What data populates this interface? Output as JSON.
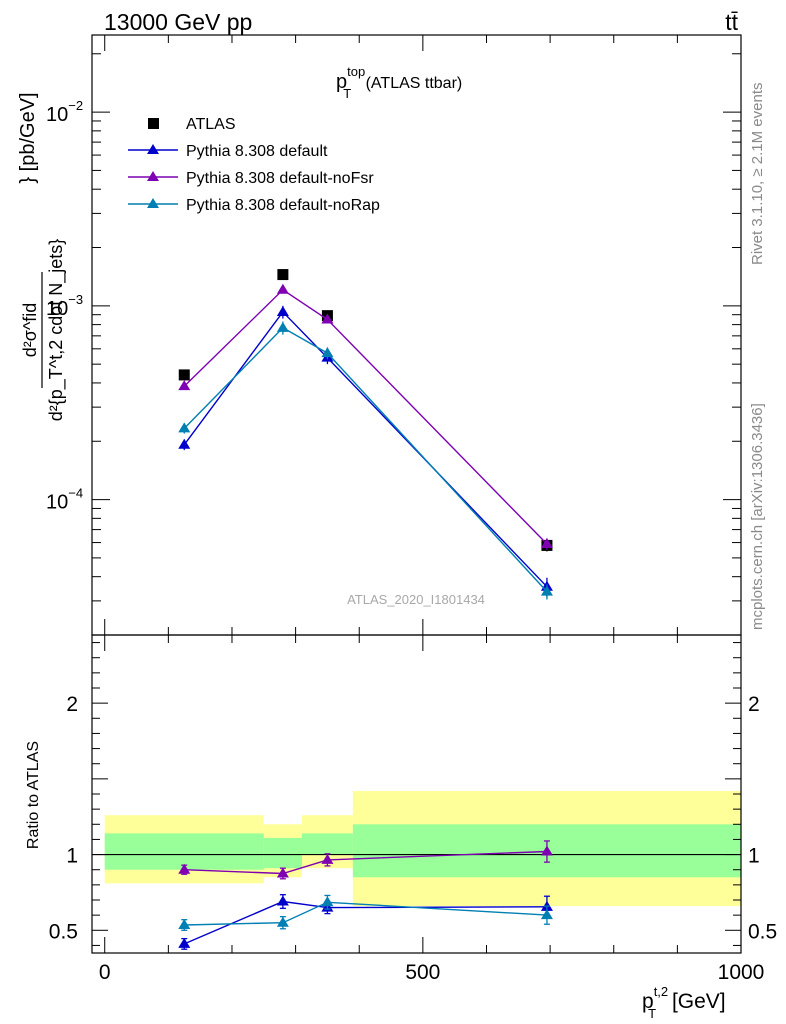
{
  "header": {
    "left": "13000 GeV pp",
    "right": "tt̄"
  },
  "side_labels": {
    "rivet": "Rivet 3.1.10, ≥ 2.1M events",
    "mcplots": "mcplots.cern.ch [arXiv:1306.3436]"
  },
  "chart_data": [
    {
      "type": "scatter",
      "panel": "main",
      "title": "p_T^top (ATLAS ttbar)",
      "title_parts": {
        "base": "p",
        "sub": "T",
        "sup": "top",
        "rest": " (ATLAS ttbar)"
      },
      "ylabel_parts": {
        "frac_numerator": "d²σ^fid",
        "frac_denominator": "d²{p_T^t,2 cdot N_jets}",
        "unit": "} [pb/GeV]"
      },
      "watermark": "ATLAS_2020_I1801434",
      "yscale": "log",
      "xlim": [
        -20,
        1000
      ],
      "ylim": [
        2e-05,
        0.025
      ],
      "yticks_major": [
        {
          "value": 0.0001,
          "label_base": "10",
          "label_exp": "−4"
        },
        {
          "value": 0.001,
          "label_base": "10",
          "label_exp": "−3"
        },
        {
          "value": 0.01,
          "label_base": "10",
          "label_exp": "−2"
        }
      ],
      "legend_position": "top-left",
      "series": [
        {
          "name": "ATLAS",
          "color": "#000000",
          "marker": "square",
          "line": false,
          "x": [
            125,
            280,
            350,
            695
          ],
          "y": [
            0.00044,
            0.00145,
            0.00089,
            5.8e-05
          ],
          "err": [
            2e-05,
            5e-05,
            3e-05,
            4e-06
          ]
        },
        {
          "name": "Pythia 8.308 default",
          "color": "#0000cc",
          "marker": "triangle",
          "line": true,
          "x": [
            125,
            280,
            350,
            695
          ],
          "y": [
            0.000192,
            0.00093,
            0.00054,
            3.55e-05
          ],
          "err": [
            1.2e-05,
            7e-05,
            4e-05,
            4e-06
          ]
        },
        {
          "name": "Pythia 8.308 default-noFsr",
          "color": "#7f00b3",
          "marker": "triangle",
          "line": true,
          "x": [
            125,
            280,
            350,
            695
          ],
          "y": [
            0.000385,
            0.00121,
            0.00085,
            5.9e-05
          ],
          "err": [
            1e-05,
            5e-05,
            3e-05,
            4e-06
          ]
        },
        {
          "name": "Pythia 8.308 default-noRap",
          "color": "#007fb3",
          "marker": "triangle",
          "line": true,
          "x": [
            125,
            280,
            350,
            695
          ],
          "y": [
            0.000233,
            0.00077,
            0.00057,
            3.35e-05
          ],
          "err": [
            1.4e-05,
            6e-05,
            4e-05,
            3e-06
          ]
        }
      ]
    },
    {
      "type": "scatter",
      "panel": "ratio",
      "ylabel": "Ratio to ATLAS",
      "xlabel_parts": {
        "base": "p",
        "sub": "T",
        "sup": "t,2",
        "rest": " [GeV]"
      },
      "xlim": [
        -20,
        1000
      ],
      "ylim": [
        0.35,
        2.45
      ],
      "xticks": [
        0,
        500,
        1000
      ],
      "yticks_labeled": [
        0.5,
        1,
        2
      ],
      "band_colors": {
        "outer": "#ffff99",
        "inner": "#99ff99"
      },
      "bands": [
        {
          "x0": 0,
          "x1": 250,
          "outer": [
            0.81,
            1.26
          ],
          "inner": [
            0.9,
            1.14
          ]
        },
        {
          "x0": 250,
          "x1": 310,
          "outer": [
            0.85,
            1.2
          ],
          "inner": [
            0.91,
            1.11
          ]
        },
        {
          "x0": 310,
          "x1": 390,
          "outer": [
            0.91,
            1.26
          ],
          "inner": [
            1.0,
            1.14
          ]
        },
        {
          "x0": 390,
          "x1": 1000,
          "outer": [
            0.66,
            1.42
          ],
          "inner": [
            0.85,
            1.2
          ]
        }
      ],
      "series": [
        {
          "name": "Pythia 8.308 default",
          "color": "#0000cc",
          "x": [
            125,
            280,
            350,
            695
          ],
          "y": [
            0.41,
            0.69,
            0.65,
            0.655
          ],
          "err": [
            0.035,
            0.045,
            0.04,
            0.07
          ]
        },
        {
          "name": "Pythia 8.308 default-noFsr",
          "color": "#7f00b3",
          "x": [
            125,
            280,
            350,
            695
          ],
          "y": [
            0.9,
            0.875,
            0.965,
            1.02
          ],
          "err": [
            0.03,
            0.035,
            0.04,
            0.07
          ]
        },
        {
          "name": "Pythia 8.308 default-noRap",
          "color": "#007fb3",
          "x": [
            125,
            280,
            350,
            695
          ],
          "y": [
            0.535,
            0.55,
            0.685,
            0.6
          ],
          "err": [
            0.035,
            0.04,
            0.045,
            0.06
          ]
        }
      ]
    }
  ]
}
